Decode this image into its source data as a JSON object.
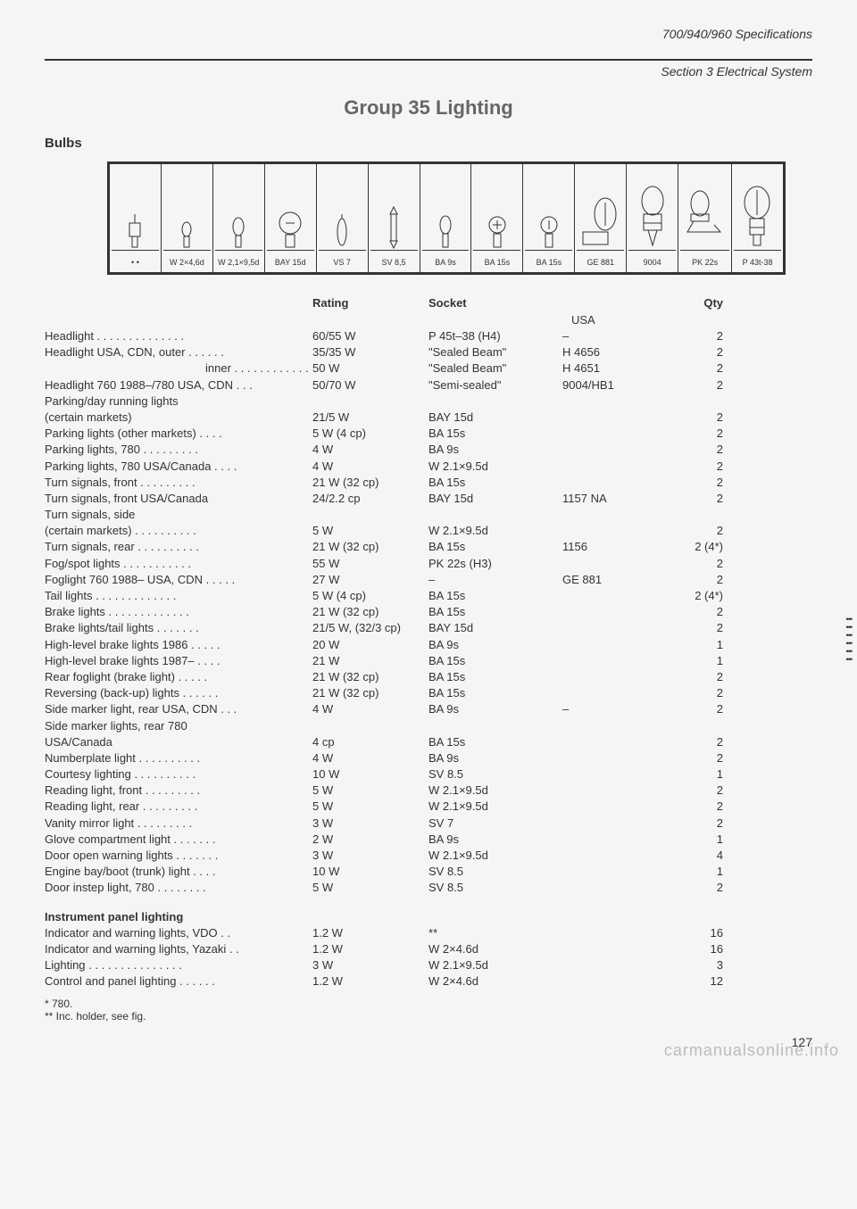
{
  "header": {
    "spec": "700/940/960 Specifications",
    "section": "Section 3 Electrical System"
  },
  "title": "Group 35  Lighting",
  "subtitle": "Bulbs",
  "bulbBox": {
    "labels": [
      "• •",
      "W 2×4,6d",
      "W 2,1×9,5d",
      "BAY 15d",
      "VS 7",
      "SV 8,5",
      "BA 9s",
      "BA 15s",
      "BA 15s",
      "GE 881",
      "9004",
      "PK 22s",
      "P 43t-38"
    ]
  },
  "columns": {
    "rating": "Rating",
    "socket": "Socket",
    "usa": "USA",
    "qty": "Qty"
  },
  "rows": [
    {
      "name": "Headlight",
      "dots": true,
      "rating": "60/55 W",
      "socket": "P 45t–38 (H4)",
      "usa": "–",
      "qty": "2"
    },
    {
      "name": "Headlight USA, CDN, outer",
      "dots": true,
      "rating": "35/35 W",
      "socket": "\"Sealed Beam\"",
      "usa": "H 4656",
      "qty": "2"
    },
    {
      "name": "inner",
      "indent": true,
      "dots": true,
      "rating": "50 W",
      "socket": "\"Sealed Beam\"",
      "usa": "H 4651",
      "qty": "2"
    },
    {
      "name": "Headlight 760 1988–/780 USA, CDN",
      "dots": true,
      "rating": "50/70 W",
      "socket": "\"Semi-sealed\"",
      "usa": "9004/HB1",
      "qty": "2"
    },
    {
      "name": "Parking/day running lights",
      "rating": "",
      "socket": "",
      "usa": "",
      "qty": ""
    },
    {
      "name": "(certain markets)",
      "rating": "21/5 W",
      "socket": "BAY 15d",
      "usa": "",
      "qty": "2"
    },
    {
      "name": "Parking lights (other markets)",
      "dots": true,
      "rating": "5 W (4 cp)",
      "socket": "BA 15s",
      "usa": "",
      "qty": "2"
    },
    {
      "name": "Parking lights, 780",
      "dots": true,
      "rating": "4 W",
      "socket": "BA 9s",
      "usa": "",
      "qty": "2"
    },
    {
      "name": "Parking lights, 780 USA/Canada",
      "dots": true,
      "rating": "4 W",
      "socket": "W 2.1×9.5d",
      "usa": "",
      "qty": "2"
    },
    {
      "name": "Turn signals, front",
      "dots": true,
      "rating": "21 W (32 cp)",
      "socket": "BA 15s",
      "usa": "",
      "qty": "2"
    },
    {
      "name": "Turn signals, front USA/Canada",
      "rating": "24/2.2 cp",
      "socket": "BAY 15d",
      "usa": "1157 NA",
      "qty": "2"
    },
    {
      "name": "Turn signals, side",
      "rating": "",
      "socket": "",
      "usa": "",
      "qty": ""
    },
    {
      "name": "(certain markets)",
      "dots": true,
      "rating": "5 W",
      "socket": "W 2.1×9.5d",
      "usa": "",
      "qty": "2"
    },
    {
      "name": "Turn signals, rear",
      "dots": true,
      "rating": "21 W (32 cp)",
      "socket": "BA 15s",
      "usa": "1156",
      "qty": "2 (4*)"
    },
    {
      "name": "Fog/spot lights",
      "dots": true,
      "rating": "55 W",
      "socket": "PK 22s (H3)",
      "usa": "",
      "qty": "2"
    },
    {
      "name": "Foglight 760 1988– USA, CDN",
      "dots": true,
      "rating": "27 W",
      "socket": "–",
      "usa": "GE 881",
      "qty": "2"
    },
    {
      "name": "Tail lights",
      "dots": true,
      "rating": "5 W (4 cp)",
      "socket": "BA 15s",
      "usa": "",
      "qty": "2 (4*)"
    },
    {
      "name": "Brake lights",
      "dots": true,
      "rating": "21 W (32 cp)",
      "socket": "BA 15s",
      "usa": "",
      "qty": "2"
    },
    {
      "name": "Brake lights/tail lights",
      "dots": true,
      "rating": "21/5 W, (32/3 cp)",
      "socket": "BAY 15d",
      "usa": "",
      "qty": "2"
    },
    {
      "name": "High-level brake lights 1986",
      "dots": true,
      "rating": "20 W",
      "socket": "BA 9s",
      "usa": "",
      "qty": "1"
    },
    {
      "name": "High-level brake lights 1987–",
      "dots": true,
      "rating": "21 W",
      "socket": "BA 15s",
      "usa": "",
      "qty": "1"
    },
    {
      "name": "Rear foglight (brake light)",
      "dots": true,
      "rating": "21 W (32 cp)",
      "socket": "BA 15s",
      "usa": "",
      "qty": "2"
    },
    {
      "name": "Reversing (back-up) lights",
      "dots": true,
      "rating": "21 W (32 cp)",
      "socket": "BA 15s",
      "usa": "",
      "qty": "2"
    },
    {
      "name": "Side marker light, rear USA, CDN",
      "dots": true,
      "rating": "4 W",
      "socket": "BA 9s",
      "usa": "–",
      "qty": "2"
    },
    {
      "name": "Side marker lights, rear 780",
      "rating": "",
      "socket": "",
      "usa": "",
      "qty": ""
    },
    {
      "name": "USA/Canada",
      "rating": "4 cp",
      "socket": "BA 15s",
      "usa": "",
      "qty": "2"
    },
    {
      "name": "Numberplate light",
      "dots": true,
      "rating": "4 W",
      "socket": "BA 9s",
      "usa": "",
      "qty": "2"
    },
    {
      "name": "Courtesy lighting",
      "dots": true,
      "rating": "10 W",
      "socket": "SV 8.5",
      "usa": "",
      "qty": "1"
    },
    {
      "name": "Reading light, front",
      "dots": true,
      "rating": "5 W",
      "socket": "W 2.1×9.5d",
      "usa": "",
      "qty": "2"
    },
    {
      "name": "Reading light, rear",
      "dots": true,
      "rating": "5 W",
      "socket": "W 2.1×9.5d",
      "usa": "",
      "qty": "2"
    },
    {
      "name": "Vanity mirror light",
      "dots": true,
      "rating": "3 W",
      "socket": "SV 7",
      "usa": "",
      "qty": "2"
    },
    {
      "name": "Glove compartment light",
      "dots": true,
      "rating": "2 W",
      "socket": "BA 9s",
      "usa": "",
      "qty": "1"
    },
    {
      "name": "Door open warning lights",
      "dots": true,
      "rating": "3 W",
      "socket": "W 2.1×9.5d",
      "usa": "",
      "qty": "4"
    },
    {
      "name": "Engine bay/boot (trunk) light",
      "dots": true,
      "rating": "10 W",
      "socket": "SV 8.5",
      "usa": "",
      "qty": "1"
    },
    {
      "name": "Door instep light, 780",
      "dots": true,
      "rating": "5 W",
      "socket": "SV 8.5",
      "usa": "",
      "qty": "2"
    }
  ],
  "instrumentHeading": "Instrument panel lighting",
  "instrumentRows": [
    {
      "name": "Indicator and warning lights, VDO",
      "dots": true,
      "rating": "1.2 W",
      "socket": "**",
      "usa": "",
      "qty": "16"
    },
    {
      "name": "Indicator and warning lights, Yazaki",
      "dots": true,
      "rating": "1.2 W",
      "socket": "W 2×4.6d",
      "usa": "",
      "qty": "16"
    },
    {
      "name": "Lighting",
      "dots": true,
      "rating": "3 W",
      "socket": "W 2.1×9.5d",
      "usa": "",
      "qty": "3"
    },
    {
      "name": "Control and panel lighting",
      "dots": true,
      "rating": "1.2 W",
      "socket": "W 2×4.6d",
      "usa": "",
      "qty": "12"
    }
  ],
  "footnotes": [
    "* 780.",
    "** Inc. holder, see fig."
  ],
  "pageNum": "127",
  "watermark": "carmanualsonline.info"
}
